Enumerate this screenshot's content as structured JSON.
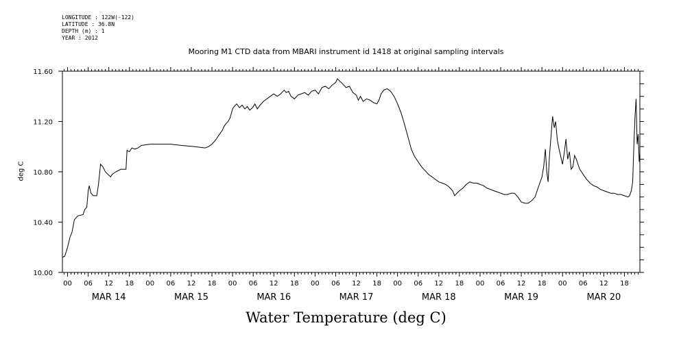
{
  "meta": {
    "longitude": "LONGITUDE : 122W(-122)",
    "latitude": "LATITUDE : 36.8N",
    "depth": "DEPTH (m) : 1",
    "year": "YEAR : 2012"
  },
  "chart_data": {
    "type": "line",
    "title": "Mooring M1 CTD data from MBARI instrument id 1418 at original sampling intervals",
    "xlabel": "Water Temperature (deg C)",
    "ylabel": "deg C",
    "ylim": [
      10.0,
      11.6
    ],
    "yticks": [
      "10.00",
      "10.40",
      "10.80",
      "11.20",
      "11.60"
    ],
    "x_unit": "hours since MAR 14 00:00",
    "xlim": [
      -1.5,
      166.5
    ],
    "hour_tick_labels": [
      "00",
      "06",
      "12",
      "18",
      "00",
      "06",
      "12",
      "18",
      "00",
      "06",
      "12",
      "18",
      "00",
      "06",
      "12",
      "18",
      "00",
      "06",
      "12",
      "18",
      "00",
      "06",
      "12",
      "18",
      "00",
      "06",
      "12",
      "18"
    ],
    "hour_tick_values": [
      0,
      6,
      12,
      18,
      24,
      30,
      36,
      42,
      48,
      54,
      60,
      66,
      72,
      78,
      84,
      90,
      96,
      102,
      108,
      114,
      120,
      126,
      132,
      138,
      144,
      150,
      156,
      162
    ],
    "date_labels": [
      "MAR 14",
      "MAR 15",
      "MAR 16",
      "MAR 17",
      "MAR 18",
      "MAR 19",
      "MAR 20"
    ],
    "date_label_values": [
      12,
      36,
      60,
      84,
      108,
      132,
      156
    ],
    "grid": false,
    "series": [
      {
        "name": "",
        "points": [
          [
            -1.5,
            10.12
          ],
          [
            -0.8,
            10.13
          ],
          [
            0,
            10.2
          ],
          [
            0.7,
            10.28
          ],
          [
            1.3,
            10.32
          ],
          [
            2,
            10.42
          ],
          [
            3,
            10.45
          ],
          [
            4.5,
            10.46
          ],
          [
            5,
            10.5
          ],
          [
            5.6,
            10.52
          ],
          [
            6,
            10.65
          ],
          [
            6.3,
            10.69
          ],
          [
            6.8,
            10.63
          ],
          [
            7.5,
            10.61
          ],
          [
            8.5,
            10.61
          ],
          [
            9,
            10.7
          ],
          [
            9.6,
            10.86
          ],
          [
            10.3,
            10.84
          ],
          [
            11,
            10.8
          ],
          [
            12.5,
            10.76
          ],
          [
            13,
            10.78
          ],
          [
            14,
            10.8
          ],
          [
            15.5,
            10.82
          ],
          [
            17,
            10.82
          ],
          [
            17.3,
            10.97
          ],
          [
            18,
            10.96
          ],
          [
            18.7,
            10.99
          ],
          [
            19.5,
            10.98
          ],
          [
            20.5,
            10.99
          ],
          [
            21.5,
            11.01
          ],
          [
            24,
            11.02
          ],
          [
            27,
            11.02
          ],
          [
            30,
            11.02
          ],
          [
            33,
            11.01
          ],
          [
            37,
            11.0
          ],
          [
            40,
            10.99
          ],
          [
            41,
            11.0
          ],
          [
            42,
            11.02
          ],
          [
            43,
            11.05
          ],
          [
            44,
            11.09
          ],
          [
            45,
            11.13
          ],
          [
            45.5,
            11.16
          ],
          [
            46,
            11.18
          ],
          [
            46.7,
            11.2
          ],
          [
            47.3,
            11.23
          ],
          [
            48,
            11.3
          ],
          [
            48.5,
            11.32
          ],
          [
            49.2,
            11.34
          ],
          [
            50,
            11.31
          ],
          [
            50.8,
            11.33
          ],
          [
            51.6,
            11.3
          ],
          [
            52.3,
            11.32
          ],
          [
            53,
            11.29
          ],
          [
            53.8,
            11.31
          ],
          [
            54.5,
            11.34
          ],
          [
            55.2,
            11.3
          ],
          [
            56,
            11.33
          ],
          [
            57,
            11.36
          ],
          [
            58,
            11.38
          ],
          [
            59,
            11.4
          ],
          [
            60,
            11.42
          ],
          [
            61,
            11.4
          ],
          [
            62,
            11.42
          ],
          [
            63,
            11.45
          ],
          [
            63.6,
            11.43
          ],
          [
            64.3,
            11.44
          ],
          [
            65,
            11.4
          ],
          [
            66,
            11.38
          ],
          [
            67,
            11.41
          ],
          [
            68,
            11.42
          ],
          [
            69,
            11.43
          ],
          [
            70,
            11.41
          ],
          [
            71,
            11.44
          ],
          [
            72,
            11.45
          ],
          [
            73,
            11.42
          ],
          [
            74,
            11.47
          ],
          [
            75,
            11.48
          ],
          [
            76,
            11.46
          ],
          [
            77,
            11.49
          ],
          [
            78,
            11.51
          ],
          [
            78.5,
            11.54
          ],
          [
            79.2,
            11.52
          ],
          [
            80,
            11.5
          ],
          [
            81,
            11.47
          ],
          [
            82,
            11.48
          ],
          [
            83,
            11.43
          ],
          [
            84,
            11.41
          ],
          [
            84.6,
            11.37
          ],
          [
            85.2,
            11.4
          ],
          [
            86,
            11.36
          ],
          [
            87,
            11.38
          ],
          [
            88,
            11.37
          ],
          [
            89,
            11.35
          ],
          [
            90,
            11.34
          ],
          [
            90.6,
            11.37
          ],
          [
            91.2,
            11.42
          ],
          [
            92,
            11.45
          ],
          [
            93,
            11.46
          ],
          [
            94,
            11.44
          ],
          [
            95,
            11.4
          ],
          [
            96,
            11.34
          ],
          [
            97,
            11.27
          ],
          [
            98,
            11.18
          ],
          [
            99,
            11.08
          ],
          [
            100,
            10.98
          ],
          [
            101,
            10.92
          ],
          [
            102,
            10.88
          ],
          [
            103,
            10.84
          ],
          [
            104,
            10.81
          ],
          [
            105,
            10.78
          ],
          [
            106,
            10.76
          ],
          [
            107,
            10.74
          ],
          [
            108,
            10.72
          ],
          [
            109,
            10.71
          ],
          [
            110,
            10.7
          ],
          [
            111,
            10.68
          ],
          [
            112,
            10.65
          ],
          [
            112.6,
            10.61
          ],
          [
            113.3,
            10.63
          ],
          [
            114,
            10.65
          ],
          [
            115,
            10.67
          ],
          [
            116,
            10.7
          ],
          [
            117,
            10.72
          ],
          [
            118,
            10.71
          ],
          [
            119,
            10.71
          ],
          [
            120,
            10.7
          ],
          [
            121,
            10.69
          ],
          [
            122,
            10.67
          ],
          [
            123,
            10.66
          ],
          [
            124,
            10.65
          ],
          [
            125,
            10.64
          ],
          [
            126,
            10.63
          ],
          [
            127,
            10.62
          ],
          [
            128,
            10.62
          ],
          [
            129,
            10.63
          ],
          [
            130,
            10.63
          ],
          [
            131,
            10.6
          ],
          [
            132,
            10.56
          ],
          [
            133,
            10.55
          ],
          [
            134,
            10.55
          ],
          [
            135,
            10.57
          ],
          [
            136,
            10.6
          ],
          [
            137,
            10.68
          ],
          [
            138,
            10.76
          ],
          [
            138.5,
            10.84
          ],
          [
            139,
            10.98
          ],
          [
            139.4,
            10.8
          ],
          [
            139.8,
            10.72
          ],
          [
            140.2,
            10.93
          ],
          [
            140.7,
            11.1
          ],
          [
            141.1,
            11.24
          ],
          [
            141.6,
            11.15
          ],
          [
            142,
            11.2
          ],
          [
            142.5,
            11.05
          ],
          [
            143,
            10.98
          ],
          [
            143.5,
            10.92
          ],
          [
            144,
            10.86
          ],
          [
            144.5,
            10.95
          ],
          [
            145,
            11.06
          ],
          [
            145.5,
            10.9
          ],
          [
            146,
            10.96
          ],
          [
            146.5,
            10.82
          ],
          [
            147,
            10.84
          ],
          [
            147.5,
            10.93
          ],
          [
            148,
            10.9
          ],
          [
            148.5,
            10.86
          ],
          [
            149,
            10.82
          ],
          [
            149.5,
            10.8
          ],
          [
            150,
            10.78
          ],
          [
            151,
            10.74
          ],
          [
            152,
            10.71
          ],
          [
            153,
            10.69
          ],
          [
            154,
            10.68
          ],
          [
            155,
            10.66
          ],
          [
            156,
            10.65
          ],
          [
            157,
            10.64
          ],
          [
            158,
            10.63
          ],
          [
            159,
            10.63
          ],
          [
            160,
            10.62
          ],
          [
            161,
            10.62
          ],
          [
            162,
            10.61
          ],
          [
            163,
            10.6
          ],
          [
            163.5,
            10.61
          ],
          [
            164,
            10.65
          ],
          [
            164.4,
            10.72
          ],
          [
            164.8,
            11.05
          ],
          [
            165.1,
            11.25
          ],
          [
            165.4,
            11.38
          ],
          [
            165.7,
            11.02
          ],
          [
            166.0,
            11.1
          ],
          [
            166.3,
            10.88
          ],
          [
            166.5,
            10.95
          ]
        ]
      }
    ]
  }
}
